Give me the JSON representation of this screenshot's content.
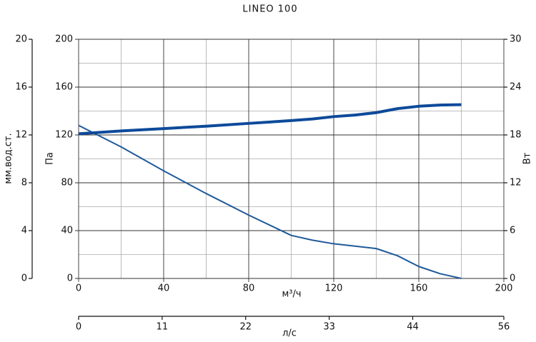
{
  "chart_data": {
    "type": "line",
    "title": "LINEO 100",
    "xlabel": "м³/ч",
    "ylabel": "Па",
    "y2label": "Вт",
    "y3label": "мм.вод.ст.",
    "x2label": "л/с",
    "x": [
      0,
      20,
      40,
      60,
      80,
      100,
      110,
      120,
      130,
      140,
      150,
      160,
      170,
      180
    ],
    "xlim": [
      0,
      200
    ],
    "xticks": [
      0,
      40,
      80,
      120,
      160,
      200
    ],
    "xminor": [
      20,
      60,
      100,
      140,
      180
    ],
    "ylim": [
      0,
      200
    ],
    "yticks": [
      0,
      40,
      80,
      120,
      160,
      200
    ],
    "yminor": [
      20,
      60,
      100,
      140,
      180
    ],
    "y2lim": [
      0,
      30
    ],
    "y2ticks": [
      0,
      6,
      12,
      18,
      24,
      30
    ],
    "y3lim": [
      0,
      20
    ],
    "y3ticks": [
      0,
      4,
      8,
      12,
      16,
      20
    ],
    "x2lim": [
      0,
      56
    ],
    "x2ticks": [
      0,
      11,
      22,
      33,
      44,
      56
    ],
    "series": [
      {
        "color": "#1f5a9a",
        "values": [
          128,
          110,
          90,
          71,
          53,
          36,
          32,
          29,
          27,
          25,
          19,
          10,
          4,
          0
        ]
      },
      {
        "color": "#0d4a9a",
        "axis": "y2",
        "values": [
          18.15,
          18.5,
          18.8,
          19.1,
          19.45,
          19.8,
          20.0,
          20.3,
          20.5,
          20.8,
          21.3,
          21.6,
          21.75,
          21.8
        ]
      }
    ]
  }
}
